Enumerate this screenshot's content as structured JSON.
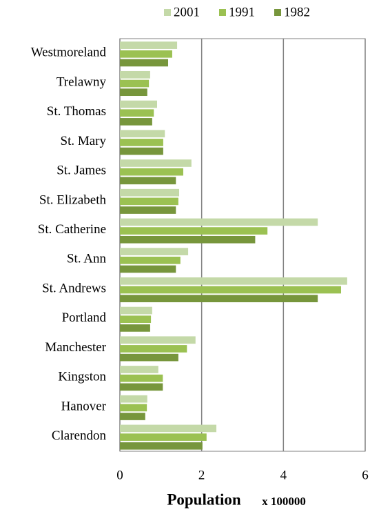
{
  "chart_data": {
    "type": "barh",
    "xlabel": "Population",
    "xlabel_unit": "x 100000",
    "categories": [
      "Westmoreland",
      "Trelawny",
      "St. Thomas",
      "St. Mary",
      "St. James",
      "St. Elizabeth",
      "St. Catherine",
      "St. Ann",
      "St. Andrews",
      "Portland",
      "Manchester",
      "Kingston",
      "Hanover",
      "Clarendon"
    ],
    "series": [
      {
        "name": "2001",
        "color": "#c4d9a8",
        "values": [
          1.4,
          0.74,
          0.91,
          1.1,
          1.75,
          1.45,
          4.84,
          1.67,
          5.56,
          0.79,
          1.85,
          0.94,
          0.67,
          2.36
        ]
      },
      {
        "name": "1991",
        "color": "#9bc152",
        "values": [
          1.28,
          0.71,
          0.83,
          1.06,
          1.55,
          1.43,
          3.61,
          1.48,
          5.41,
          0.76,
          1.64,
          1.05,
          0.66,
          2.12
        ]
      },
      {
        "name": "1982",
        "color": "#77963c",
        "values": [
          1.18,
          0.67,
          0.79,
          1.06,
          1.37,
          1.37,
          3.31,
          1.37,
          4.84,
          0.74,
          1.43,
          1.05,
          0.62,
          2.02
        ]
      }
    ],
    "xlim": [
      0,
      6
    ],
    "xticks": [
      0,
      2,
      4,
      6
    ],
    "grid": true,
    "legend": "top"
  }
}
